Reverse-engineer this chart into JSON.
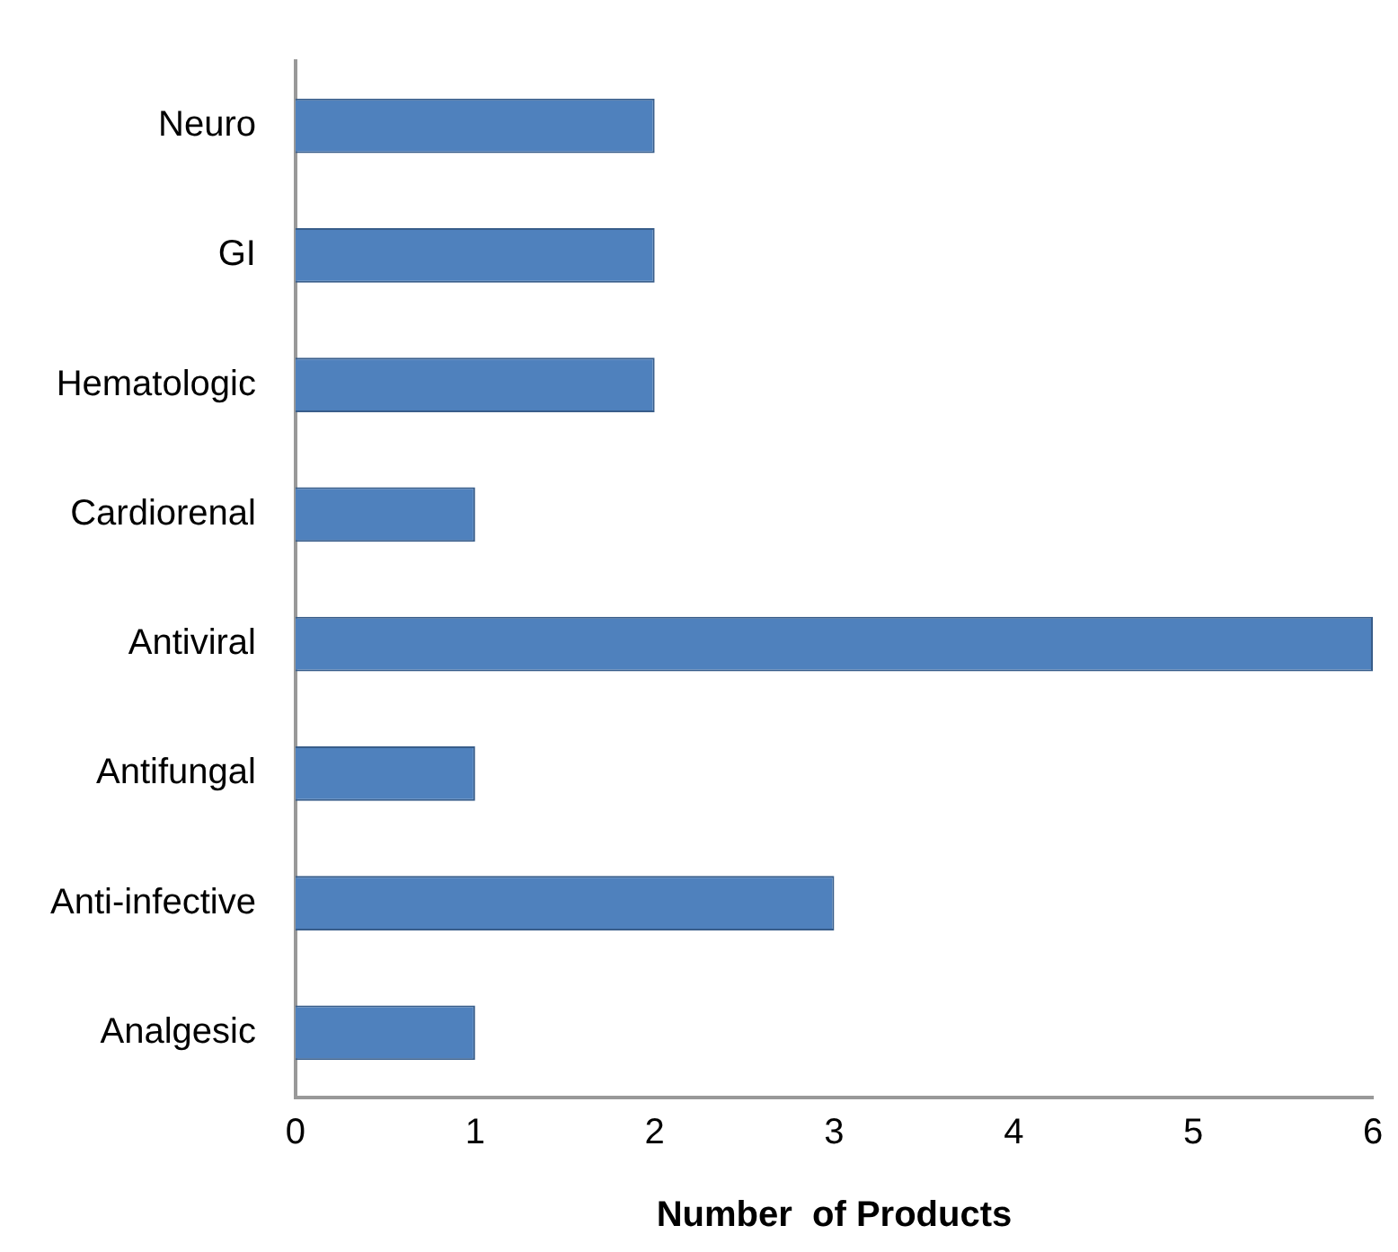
{
  "chart_data": {
    "type": "bar",
    "orientation": "horizontal",
    "xlabel": "Number  of Products",
    "categories": [
      "Neuro",
      "GI",
      "Hematologic",
      "Cardiorenal",
      "Antiviral",
      "Antifungal",
      "Anti-infective",
      "Analgesic"
    ],
    "values": [
      2,
      2,
      2,
      1,
      6,
      1,
      3,
      1
    ],
    "color": "#4f81bd",
    "xlim": [
      0,
      6
    ],
    "xticks": [
      0,
      1,
      2,
      3,
      4,
      5,
      6
    ],
    "grid": false,
    "legend": false
  }
}
